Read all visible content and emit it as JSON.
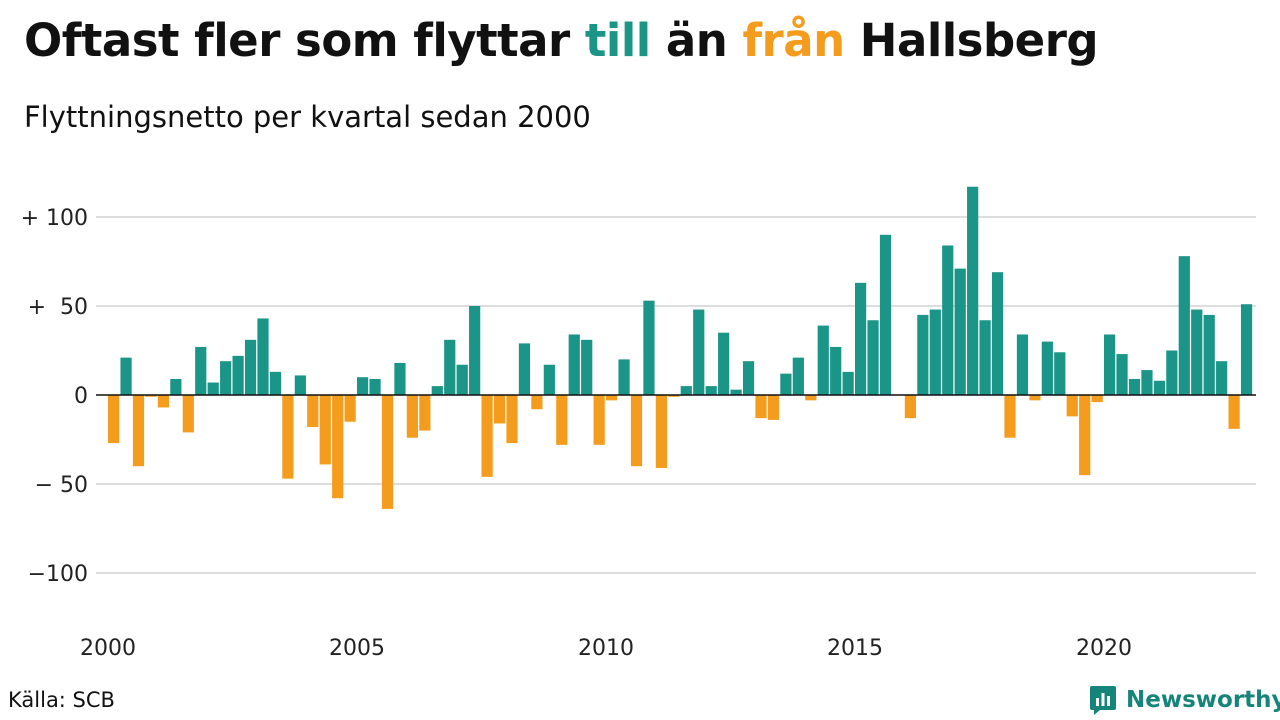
{
  "title": {
    "before": "Oftast fler som flyttar ",
    "word_in": "till",
    "middle": " än ",
    "word_out": "från",
    "after": " Hallsberg"
  },
  "subtitle": "Flyttningsnetto per kvartal sedan 2000",
  "source": "Källa: SCB",
  "brand": {
    "name": "Newsworthy",
    "icon": "chart-logo-icon"
  },
  "colors": {
    "positive": "#1b9587",
    "negative": "#f39c1d",
    "grid": "#dddddd",
    "baseline": "#111111"
  },
  "chart_data": {
    "type": "bar",
    "ylim": [
      -125,
      125
    ],
    "y_ticks": [
      {
        "value": 100,
        "label": "+ 100"
      },
      {
        "value": 50,
        "label": "+  50"
      },
      {
        "value": 0,
        "label": "0"
      },
      {
        "value": -50,
        "label": "− 50"
      },
      {
        "value": -100,
        "label": "−100"
      }
    ],
    "x_ticks": [
      "2000",
      "2005",
      "2010",
      "2015",
      "2020"
    ],
    "first_year": 2000,
    "values": [
      -27,
      21,
      -40,
      -1,
      -7,
      9,
      -21,
      27,
      7,
      19,
      22,
      31,
      43,
      13,
      -47,
      11,
      -18,
      -39,
      -58,
      -15,
      10,
      9,
      -64,
      18,
      -24,
      -20,
      5,
      31,
      17,
      50,
      -46,
      -16,
      -27,
      29,
      -8,
      17,
      -28,
      34,
      31,
      -28,
      -3,
      20,
      -40,
      53,
      -41,
      -1,
      5,
      48,
      5,
      35,
      3,
      19,
      -13,
      -14,
      12,
      21,
      -3,
      39,
      27,
      13,
      63,
      42,
      90,
      0,
      -13,
      45,
      48,
      84,
      71,
      117,
      42,
      69,
      -24,
      34,
      -3,
      30,
      24,
      -12,
      -45,
      -4,
      34,
      23,
      9,
      14,
      8,
      25,
      78,
      48,
      45,
      19,
      -19,
      51
    ]
  }
}
